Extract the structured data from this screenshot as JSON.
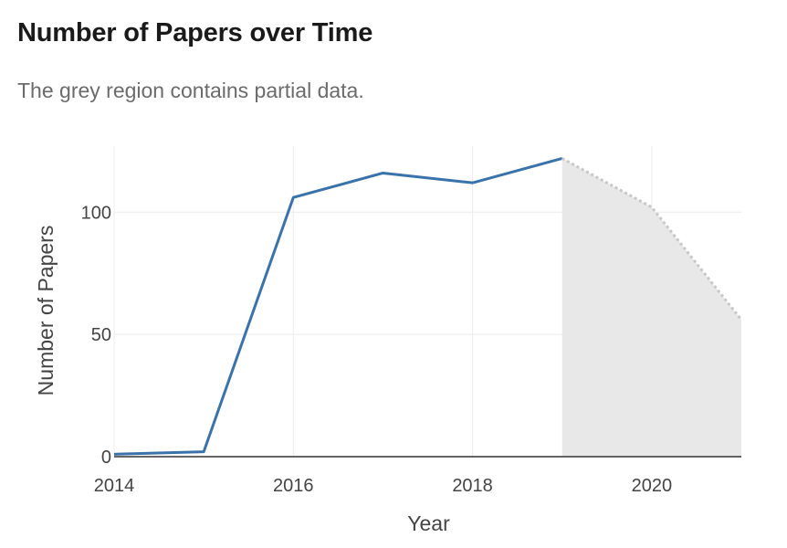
{
  "chart_data": {
    "type": "line",
    "title": "Number of Papers over Time",
    "subtitle": "The grey region contains partial data.",
    "xlabel": "Year",
    "ylabel": "Number of Papers",
    "xlim": [
      2014,
      2021
    ],
    "ylim": [
      0,
      127
    ],
    "x_ticks": [
      2014,
      2016,
      2018,
      2020
    ],
    "y_ticks": [
      0,
      50,
      100
    ],
    "grid": true,
    "series": [
      {
        "x": [
          2014,
          2015,
          2016,
          2017,
          2018,
          2019
        ],
        "y": [
          1,
          2,
          106,
          116,
          112,
          122
        ],
        "style": "solid",
        "color": "#3a72aa"
      },
      {
        "x": [
          2019,
          2020,
          2021
        ],
        "y": [
          122,
          102,
          56
        ],
        "style": "dotted",
        "color": "#c8c8c8",
        "shaded": true,
        "shade_color": "#e8e8e8"
      }
    ]
  }
}
